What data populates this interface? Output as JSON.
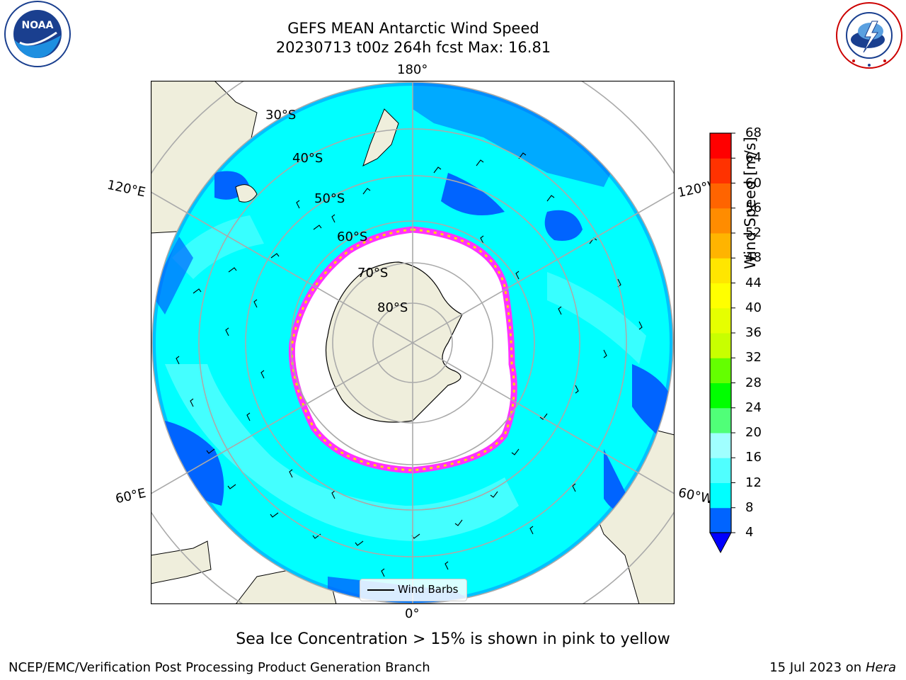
{
  "header": {
    "title_line1": "GEFS MEAN Antarctic Wind Speed",
    "title_line2": "20230713 t00z 264h fcst   Max: 16.81"
  },
  "logos": {
    "left": "noaa-logo",
    "right": "national-weather-service-logo",
    "left_text": "NOAA",
    "left_ring_text": "NATIONAL OCEANIC AND ATMOSPHERIC ADMINISTRATION · U.S. DEPARTMENT OF COMMERCE",
    "right_ring_text": "NATIONAL WEATHER SERVICE"
  },
  "map": {
    "projection": "south-polar-stereographic",
    "longitude_labels": {
      "top": "180°",
      "bottom": "0°",
      "upper_left": "120°E",
      "upper_right": "120°W",
      "lower_left": "60°E",
      "lower_right": "60°W"
    },
    "latitude_labels": [
      "30°S",
      "40°S",
      "50°S",
      "60°S",
      "70°S",
      "80°S"
    ],
    "legend_label": "Wind Barbs",
    "colors": {
      "land": "#efeedc",
      "sea_ice": "#ffffff",
      "ice_edge_pink": "#ff33ff",
      "ice_edge_yellow": "#ffd700"
    }
  },
  "colorbar": {
    "title": "Wind Speed [m/s]",
    "ticks": [
      "68",
      "64",
      "60",
      "56",
      "52",
      "48",
      "44",
      "40",
      "36",
      "32",
      "28",
      "24",
      "20",
      "16",
      "12",
      "8",
      "4"
    ],
    "colors_bottom_to_top": [
      "#0064ff",
      "#00ffff",
      "#50ffff",
      "#a0ffff",
      "#50ff78",
      "#00ff00",
      "#64ff00",
      "#c8ff00",
      "#e6ff00",
      "#ffff00",
      "#ffe600",
      "#ffb400",
      "#ff8c00",
      "#ff6400",
      "#ff3200",
      "#ff0000"
    ],
    "extend_color": "#0000ff"
  },
  "note": "Sea Ice Concentration > 15% is shown in pink to yellow",
  "footer": {
    "left": "NCEP/EMC/Verification Post Processing Product Generation Branch",
    "right_prefix": "15 Jul 2023 on",
    "right_host": "Hera"
  }
}
